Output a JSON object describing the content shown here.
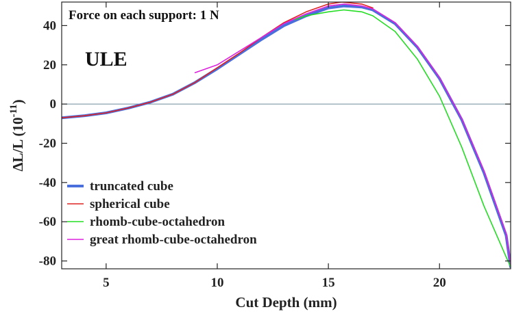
{
  "chart_data": {
    "type": "line",
    "title": "",
    "xlabel": "Cut Depth (mm)",
    "ylabel": "ΔL/L (10",
    "ylabel_exp": "-11",
    "ylabel_tail": ")",
    "xlim": [
      3.0,
      23.2
    ],
    "ylim": [
      -84,
      52
    ],
    "xticks": [
      5,
      10,
      15,
      20
    ],
    "yticks": [
      -80,
      -60,
      -40,
      -20,
      0,
      20,
      40
    ],
    "grid": false,
    "zero_line": true,
    "legend_position": "bottom-left",
    "annotations": [
      "Force on each support: 1 N",
      "ULE"
    ],
    "series": [
      {
        "name": "truncated cube",
        "color": "#4a6fdc",
        "x": [
          3.0,
          4.0,
          5.0,
          6.0,
          7.0,
          8.0,
          9.0,
          10.0,
          11.0,
          12.0,
          13.0,
          14.0,
          15.0,
          15.7,
          16.5,
          17.0,
          18.0,
          19.0,
          20.0,
          21.0,
          22.0,
          23.0,
          23.2
        ],
        "y": [
          -7,
          -6,
          -4.5,
          -2,
          1,
          5,
          11,
          18,
          25.5,
          33,
          40,
          45,
          49,
          50,
          49.5,
          48,
          41,
          29,
          13,
          -8,
          -35,
          -67,
          -83
        ]
      },
      {
        "name": "spherical cube",
        "color": "#dd2222",
        "x": [
          3.0,
          4.0,
          5.0,
          6.0,
          7.0,
          8.0,
          9.0,
          10.0,
          11.0,
          12.0,
          13.0,
          14.0,
          15.0,
          15.6,
          16.5,
          17.0
        ],
        "y": [
          -7,
          -6,
          -4.5,
          -2,
          1,
          5,
          11,
          18.5,
          26,
          34,
          41.5,
          47,
          51,
          52,
          51,
          49
        ]
      },
      {
        "name": "rhomb-cube-octahedron",
        "color": "#22dd22",
        "x": [
          13.5,
          14.0,
          15.0,
          15.7,
          16.5,
          17.0,
          18.0,
          19.0,
          20.0,
          21.0,
          22.0,
          23.0,
          23.2
        ],
        "y": [
          43,
          45,
          47,
          48,
          47,
          45,
          37,
          23,
          4,
          -22,
          -52,
          -78,
          -83
        ]
      },
      {
        "name": "great rhomb-cube-octahedron",
        "color": "#dd22dd",
        "x": [
          9.0,
          10.0,
          11.0,
          12.0,
          13.0,
          14.0,
          15.0,
          15.7,
          16.5,
          17.0,
          18.0,
          19.0,
          20.0,
          21.0,
          22.0,
          23.0,
          23.2
        ],
        "y": [
          16,
          20,
          27,
          34,
          41,
          46,
          50,
          51,
          50,
          48.5,
          41.5,
          29.5,
          13.5,
          -7.5,
          -34,
          -66,
          -82
        ]
      }
    ]
  }
}
